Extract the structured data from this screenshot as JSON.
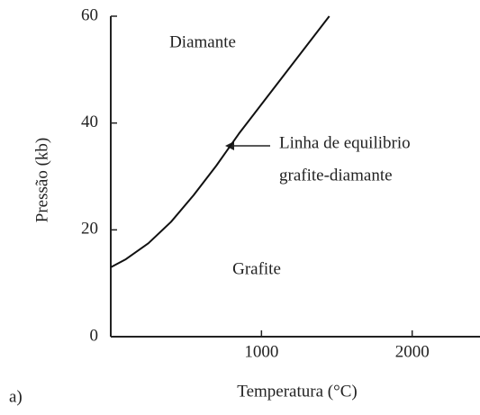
{
  "chart_data": {
    "type": "line",
    "x_label": "Temperatura (°C)",
    "y_label": "Pressão (kb)",
    "panel_label": "a)",
    "annotations": [
      "Diamante",
      "Grafite"
    ],
    "arrow_label": [
      "Linha de equilibrio",
      "grafite-diamante"
    ],
    "x": [
      0,
      100,
      250,
      400,
      550,
      700,
      850,
      1000,
      1150,
      1300,
      1450
    ],
    "series": [
      {
        "color": "#111111",
        "values": [
          13,
          14.5,
          17.5,
          21.5,
          26.5,
          32,
          38,
          43.5,
          49,
          54.5,
          60
        ]
      }
    ],
    "xlim": [
      0,
      2450
    ],
    "xticks": [
      1000,
      2000
    ],
    "ylim": [
      0,
      60
    ],
    "yticks": [
      0,
      20,
      40,
      60
    ]
  }
}
